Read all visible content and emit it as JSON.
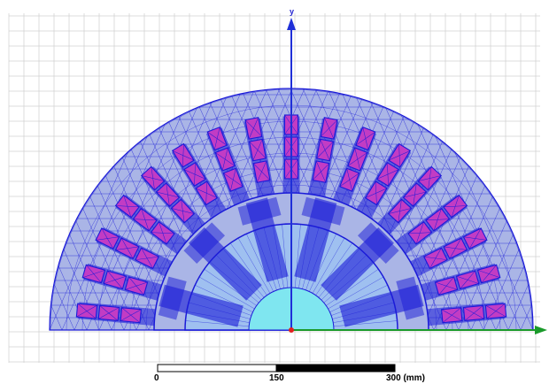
{
  "viewport": {
    "axes": {
      "y_label": "y"
    },
    "scale_bar": {
      "labels": [
        "0",
        "150",
        "300 (mm)"
      ]
    },
    "colors": {
      "background": "#ffffff",
      "grid": "#d0d0d0",
      "stator_fill": "#aab5e6",
      "mesh": "#1b1bd8",
      "slot_fill": "#c23cc4",
      "rotor_core_fill": "#9fc0f0",
      "shaft_fill": "#7fe6f0",
      "y_axis": "#1f2fd8",
      "x_axis": "#1a9a2a",
      "origin": "#e02020"
    },
    "model": {
      "slot_count": 17,
      "coil_segments_per_slot": 3,
      "rotor_pole_count": 6
    }
  }
}
